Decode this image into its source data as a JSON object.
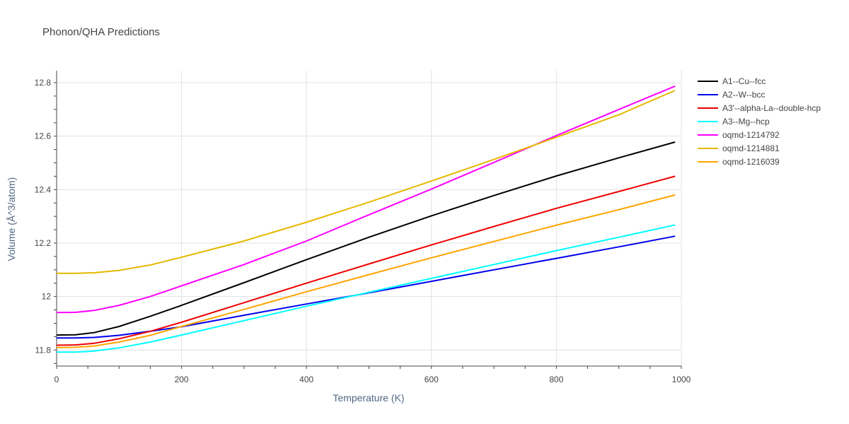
{
  "chart_data": {
    "type": "line",
    "title": "Phonon/QHA Predictions",
    "xlabel": "Temperature (K)",
    "ylabel": "Volume (Å^3/atom)",
    "xlim": [
      0,
      1000
    ],
    "ylim": [
      11.74,
      12.845
    ],
    "x_ticks": [
      "0",
      "200",
      "400",
      "600",
      "800",
      "1000"
    ],
    "y_ticks": [
      "11.8",
      "12",
      "12.2",
      "12.4",
      "12.6",
      "12.8"
    ],
    "grid": true,
    "legend_position": "right",
    "series": [
      {
        "name": "A1--Cu--fcc",
        "color": "#000000",
        "x": [
          0,
          30,
          60,
          100,
          150,
          200,
          300,
          400,
          500,
          600,
          700,
          800,
          900,
          990
        ],
        "y": [
          11.856,
          11.857,
          11.865,
          11.888,
          11.926,
          11.967,
          12.052,
          12.138,
          12.222,
          12.302,
          12.378,
          12.451,
          12.519,
          12.578
        ]
      },
      {
        "name": "A2--W--bcc",
        "color": "#0000ee",
        "x": [
          0,
          30,
          60,
          100,
          150,
          200,
          300,
          400,
          500,
          600,
          700,
          800,
          900,
          990
        ],
        "y": [
          11.845,
          11.845,
          11.847,
          11.855,
          11.87,
          11.887,
          11.93,
          11.972,
          12.014,
          12.057,
          12.1,
          12.143,
          12.186,
          12.226
        ]
      },
      {
        "name": "A3'--alpha-La--double-hcp",
        "color": "#ee0000",
        "x": [
          0,
          30,
          60,
          100,
          150,
          200,
          300,
          400,
          500,
          600,
          700,
          800,
          900,
          990
        ],
        "y": [
          11.818,
          11.819,
          11.825,
          11.842,
          11.87,
          11.904,
          11.977,
          12.05,
          12.122,
          12.193,
          12.262,
          12.33,
          12.393,
          12.45
        ]
      },
      {
        "name": "A3--Mg--hcp",
        "color": "#00ffff",
        "x": [
          0,
          30,
          60,
          100,
          150,
          200,
          300,
          400,
          500,
          600,
          700,
          800,
          900,
          990
        ],
        "y": [
          11.792,
          11.792,
          11.796,
          11.808,
          11.83,
          11.856,
          11.91,
          11.964,
          12.016,
          12.068,
          12.12,
          12.172,
          12.222,
          12.268
        ]
      },
      {
        "name": "oqmd-1214792",
        "color": "#ff00ff",
        "x": [
          0,
          30,
          60,
          100,
          150,
          200,
          300,
          400,
          500,
          600,
          700,
          800,
          900,
          990
        ],
        "y": [
          11.94,
          11.941,
          11.948,
          11.967,
          12.0,
          12.04,
          12.12,
          12.208,
          12.306,
          12.402,
          12.502,
          12.602,
          12.7,
          12.787
        ]
      },
      {
        "name": "oqmd-1214881",
        "color": "#e6b800",
        "x": [
          0,
          30,
          60,
          100,
          150,
          200,
          300,
          400,
          500,
          600,
          700,
          800,
          900,
          990
        ],
        "y": [
          12.087,
          12.087,
          12.089,
          12.098,
          12.118,
          12.147,
          12.208,
          12.278,
          12.353,
          12.432,
          12.513,
          12.596,
          12.68,
          12.771
        ]
      },
      {
        "name": "oqmd-1216039",
        "color": "#ffa500",
        "x": [
          0,
          30,
          60,
          100,
          150,
          200,
          300,
          400,
          500,
          600,
          700,
          800,
          900,
          990
        ],
        "y": [
          11.809,
          11.81,
          11.815,
          11.83,
          11.855,
          11.888,
          11.952,
          12.018,
          12.082,
          12.145,
          12.206,
          12.267,
          12.325,
          12.38
        ]
      }
    ]
  }
}
